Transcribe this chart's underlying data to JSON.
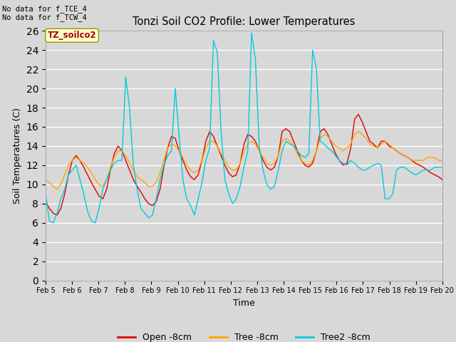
{
  "title": "Tonzi Soil CO2 Profile: Lower Temperatures",
  "xlabel": "Time",
  "ylabel": "Soil Temperatures (C)",
  "note_line1": "No data for f_TCE_4",
  "note_line2": "No data for f_TCW_4",
  "watermark": "TZ_soilco2",
  "ylim": [
    0,
    26
  ],
  "yticks": [
    0,
    2,
    4,
    6,
    8,
    10,
    12,
    14,
    16,
    18,
    20,
    22,
    24,
    26
  ],
  "xtick_labels": [
    "Feb 5",
    "Feb 6",
    "Feb 7",
    "Feb 8",
    "Feb 9",
    "Feb 10",
    "Feb 11",
    "Feb 12",
    "Feb 13",
    "Feb 14",
    "Feb 15",
    "Feb 16",
    "Feb 17",
    "Feb 18",
    "Feb 19",
    "Feb 20"
  ],
  "legend_entries": [
    "Open -8cm",
    "Tree -8cm",
    "Tree2 -8cm"
  ],
  "line_colors": [
    "#dd0000",
    "#ffa500",
    "#00ccdd"
  ],
  "background_color": "#d8d8d8",
  "plot_bg_color": "#d8d8d8",
  "open_data": [
    8.2,
    7.5,
    7.0,
    6.8,
    7.5,
    9.0,
    11.0,
    12.5,
    13.0,
    12.5,
    11.8,
    11.0,
    10.2,
    9.5,
    8.8,
    8.5,
    9.5,
    11.5,
    13.2,
    14.0,
    13.5,
    12.5,
    11.5,
    10.5,
    9.8,
    9.2,
    8.5,
    8.0,
    7.8,
    8.2,
    9.5,
    11.8,
    13.8,
    15.0,
    14.8,
    13.5,
    12.5,
    11.5,
    10.8,
    10.5,
    11.0,
    12.5,
    14.5,
    15.5,
    15.0,
    14.0,
    13.0,
    12.0,
    11.2,
    10.8,
    11.0,
    12.2,
    14.2,
    15.2,
    15.0,
    14.5,
    13.5,
    12.5,
    11.8,
    11.5,
    11.8,
    13.0,
    15.5,
    15.8,
    15.5,
    14.5,
    13.5,
    12.5,
    12.0,
    11.8,
    12.2,
    13.5,
    15.5,
    15.8,
    15.2,
    14.2,
    13.2,
    12.5,
    12.0,
    12.2,
    13.8,
    16.8,
    17.3,
    16.5,
    15.5,
    14.5,
    14.2,
    13.8,
    14.5,
    14.5,
    14.0,
    13.8,
    13.5,
    13.2,
    13.0,
    12.8,
    12.5,
    12.2,
    12.0,
    11.8,
    11.5,
    11.2,
    11.0,
    10.8,
    10.5
  ],
  "tree_data": [
    10.5,
    10.2,
    9.8,
    9.5,
    10.0,
    11.0,
    12.0,
    12.5,
    12.8,
    12.5,
    12.2,
    11.8,
    11.2,
    10.5,
    10.0,
    9.8,
    10.5,
    11.8,
    12.8,
    13.5,
    13.5,
    13.0,
    12.2,
    11.5,
    10.8,
    10.5,
    10.2,
    9.8,
    9.8,
    10.2,
    11.2,
    12.5,
    13.8,
    14.2,
    14.0,
    13.5,
    12.8,
    12.0,
    11.5,
    11.2,
    11.5,
    12.5,
    13.8,
    14.5,
    14.5,
    14.0,
    13.2,
    12.5,
    11.8,
    11.5,
    11.5,
    12.2,
    13.5,
    14.2,
    14.5,
    14.2,
    13.5,
    12.8,
    12.2,
    12.0,
    12.2,
    13.0,
    14.5,
    14.8,
    14.5,
    14.0,
    13.2,
    12.5,
    12.2,
    12.0,
    12.5,
    13.5,
    14.8,
    15.2,
    15.0,
    14.5,
    14.0,
    13.8,
    13.5,
    13.8,
    14.2,
    15.2,
    15.5,
    15.2,
    14.8,
    14.2,
    14.0,
    13.8,
    14.2,
    14.5,
    14.2,
    13.8,
    13.5,
    13.2,
    13.0,
    12.8,
    12.5,
    12.5,
    12.5,
    12.5,
    12.8,
    12.8,
    12.8,
    12.5,
    12.5
  ],
  "tree2_data": [
    9.0,
    6.2,
    6.0,
    7.0,
    8.5,
    9.5,
    11.0,
    11.5,
    12.0,
    10.5,
    9.0,
    7.2,
    6.2,
    6.0,
    7.5,
    9.5,
    10.5,
    11.5,
    12.2,
    12.5,
    12.5,
    21.2,
    18.0,
    12.0,
    9.5,
    7.5,
    7.0,
    6.5,
    6.8,
    8.5,
    10.5,
    12.0,
    13.0,
    13.5,
    20.0,
    15.0,
    10.5,
    8.5,
    7.8,
    6.8,
    8.5,
    10.2,
    12.5,
    13.8,
    25.0,
    23.8,
    15.5,
    10.5,
    9.0,
    8.0,
    8.5,
    9.8,
    11.8,
    13.5,
    25.8,
    23.0,
    14.0,
    11.5,
    10.0,
    9.5,
    9.8,
    11.5,
    13.5,
    14.5,
    14.2,
    14.0,
    13.5,
    13.0,
    12.8,
    13.2,
    24.0,
    22.0,
    14.5,
    14.2,
    13.8,
    13.5,
    13.0,
    12.5,
    12.2,
    12.0,
    12.5,
    12.2,
    11.8,
    11.5,
    11.5,
    11.8,
    12.0,
    12.2,
    12.0,
    8.5,
    8.5,
    9.0,
    11.5,
    11.8,
    11.8,
    11.5,
    11.2,
    11.0,
    11.2,
    11.5,
    11.5,
    11.5,
    11.8,
    11.8,
    11.8
  ]
}
